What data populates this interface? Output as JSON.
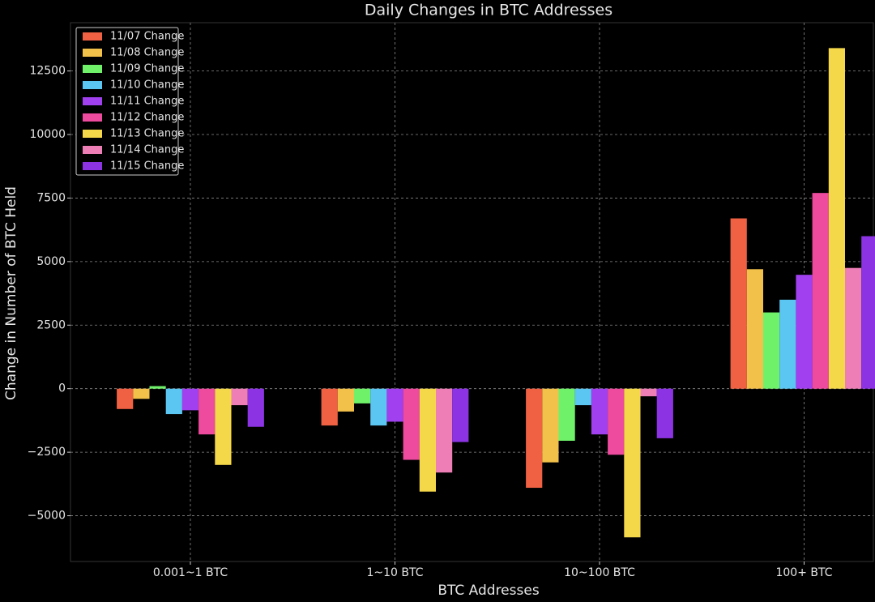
{
  "chart_data": {
    "type": "bar",
    "title": "Daily Changes in BTC Addresses",
    "x_label": "BTC Addresses",
    "y_label": "Change in Number of BTC Held",
    "categories": [
      "0.001~1 BTC",
      "1~10 BTC",
      "10~100 BTC",
      "100+ BTC"
    ],
    "series": [
      {
        "name": "11/07 Change",
        "color": "#ef6142",
        "values": [
          -800,
          -1450,
          -3900,
          6700
        ]
      },
      {
        "name": "11/08 Change",
        "color": "#f2c14a",
        "values": [
          -400,
          -900,
          -2900,
          4700
        ]
      },
      {
        "name": "11/09 Change",
        "color": "#6ff26a",
        "values": [
          100,
          -580,
          -2050,
          3000
        ]
      },
      {
        "name": "11/10 Change",
        "color": "#5cc6f2",
        "values": [
          -1000,
          -1450,
          -650,
          3500
        ]
      },
      {
        "name": "11/11 Change",
        "color": "#a040ee",
        "values": [
          -850,
          -1300,
          -1800,
          4480
        ]
      },
      {
        "name": "11/12 Change",
        "color": "#ee4a9e",
        "values": [
          -1800,
          -2800,
          -2600,
          7700
        ]
      },
      {
        "name": "11/13 Change",
        "color": "#f5d84a",
        "values": [
          -3000,
          -4050,
          -5850,
          13400
        ]
      },
      {
        "name": "11/14 Change",
        "color": "#ee7eb6",
        "values": [
          -650,
          -3300,
          -300,
          4750
        ]
      },
      {
        "name": "11/15 Change",
        "color": "#8c34e4",
        "values": [
          -1500,
          -2100,
          -1950,
          6000
        ]
      }
    ],
    "ylim": [
      -6800,
      14400
    ],
    "yticks": [
      {
        "value": -5000,
        "label": "−5000"
      },
      {
        "value": -2500,
        "label": "−2500"
      },
      0,
      2500,
      5000,
      7500,
      10000,
      12500
    ],
    "grid": true,
    "legend": "upper-left"
  }
}
